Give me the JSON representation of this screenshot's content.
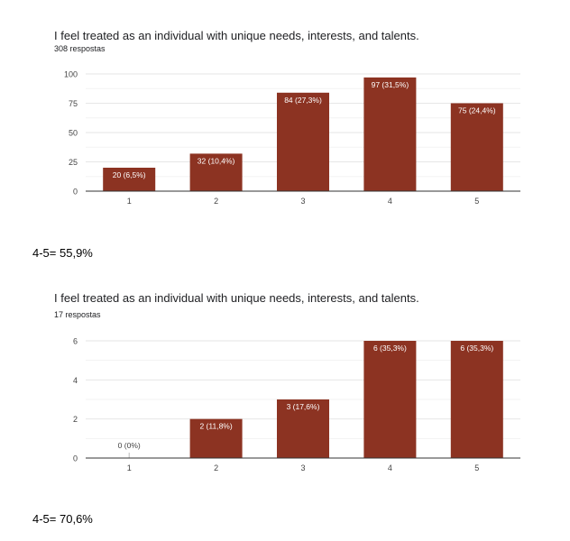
{
  "chart_data": [
    {
      "type": "bar",
      "title": "I feel treated as an individual with unique needs, interests, and talents.",
      "subtitle": "308 respostas",
      "categories": [
        "1",
        "2",
        "3",
        "4",
        "5"
      ],
      "values": [
        20,
        32,
        84,
        97,
        75
      ],
      "data_labels": [
        "20 (6,5%)",
        "32 (10,4%)",
        "84 (27,3%)",
        "97 (31,5%)",
        "75 (24,4%)"
      ],
      "ylim": [
        0,
        100
      ],
      "yticks": [
        0,
        25,
        50,
        75,
        100
      ],
      "grid": true,
      "bar_color": "#8c3322"
    },
    {
      "type": "bar",
      "title": "I feel treated as an individual with unique needs, interests, and talents.",
      "subtitle": "17 respostas",
      "categories": [
        "1",
        "2",
        "3",
        "4",
        "5"
      ],
      "values": [
        0,
        2,
        3,
        6,
        6
      ],
      "data_labels": [
        "0 (0%)",
        "2 (11,8%)",
        "3 (17,6%)",
        "6 (35,3%)",
        "6 (35,3%)"
      ],
      "ylim": [
        0,
        6
      ],
      "yticks": [
        0,
        2,
        4,
        6
      ],
      "grid": true,
      "bar_color": "#8c3322"
    }
  ],
  "notes": [
    "4-5= 55,9%",
    "4-5= 70,6%"
  ]
}
